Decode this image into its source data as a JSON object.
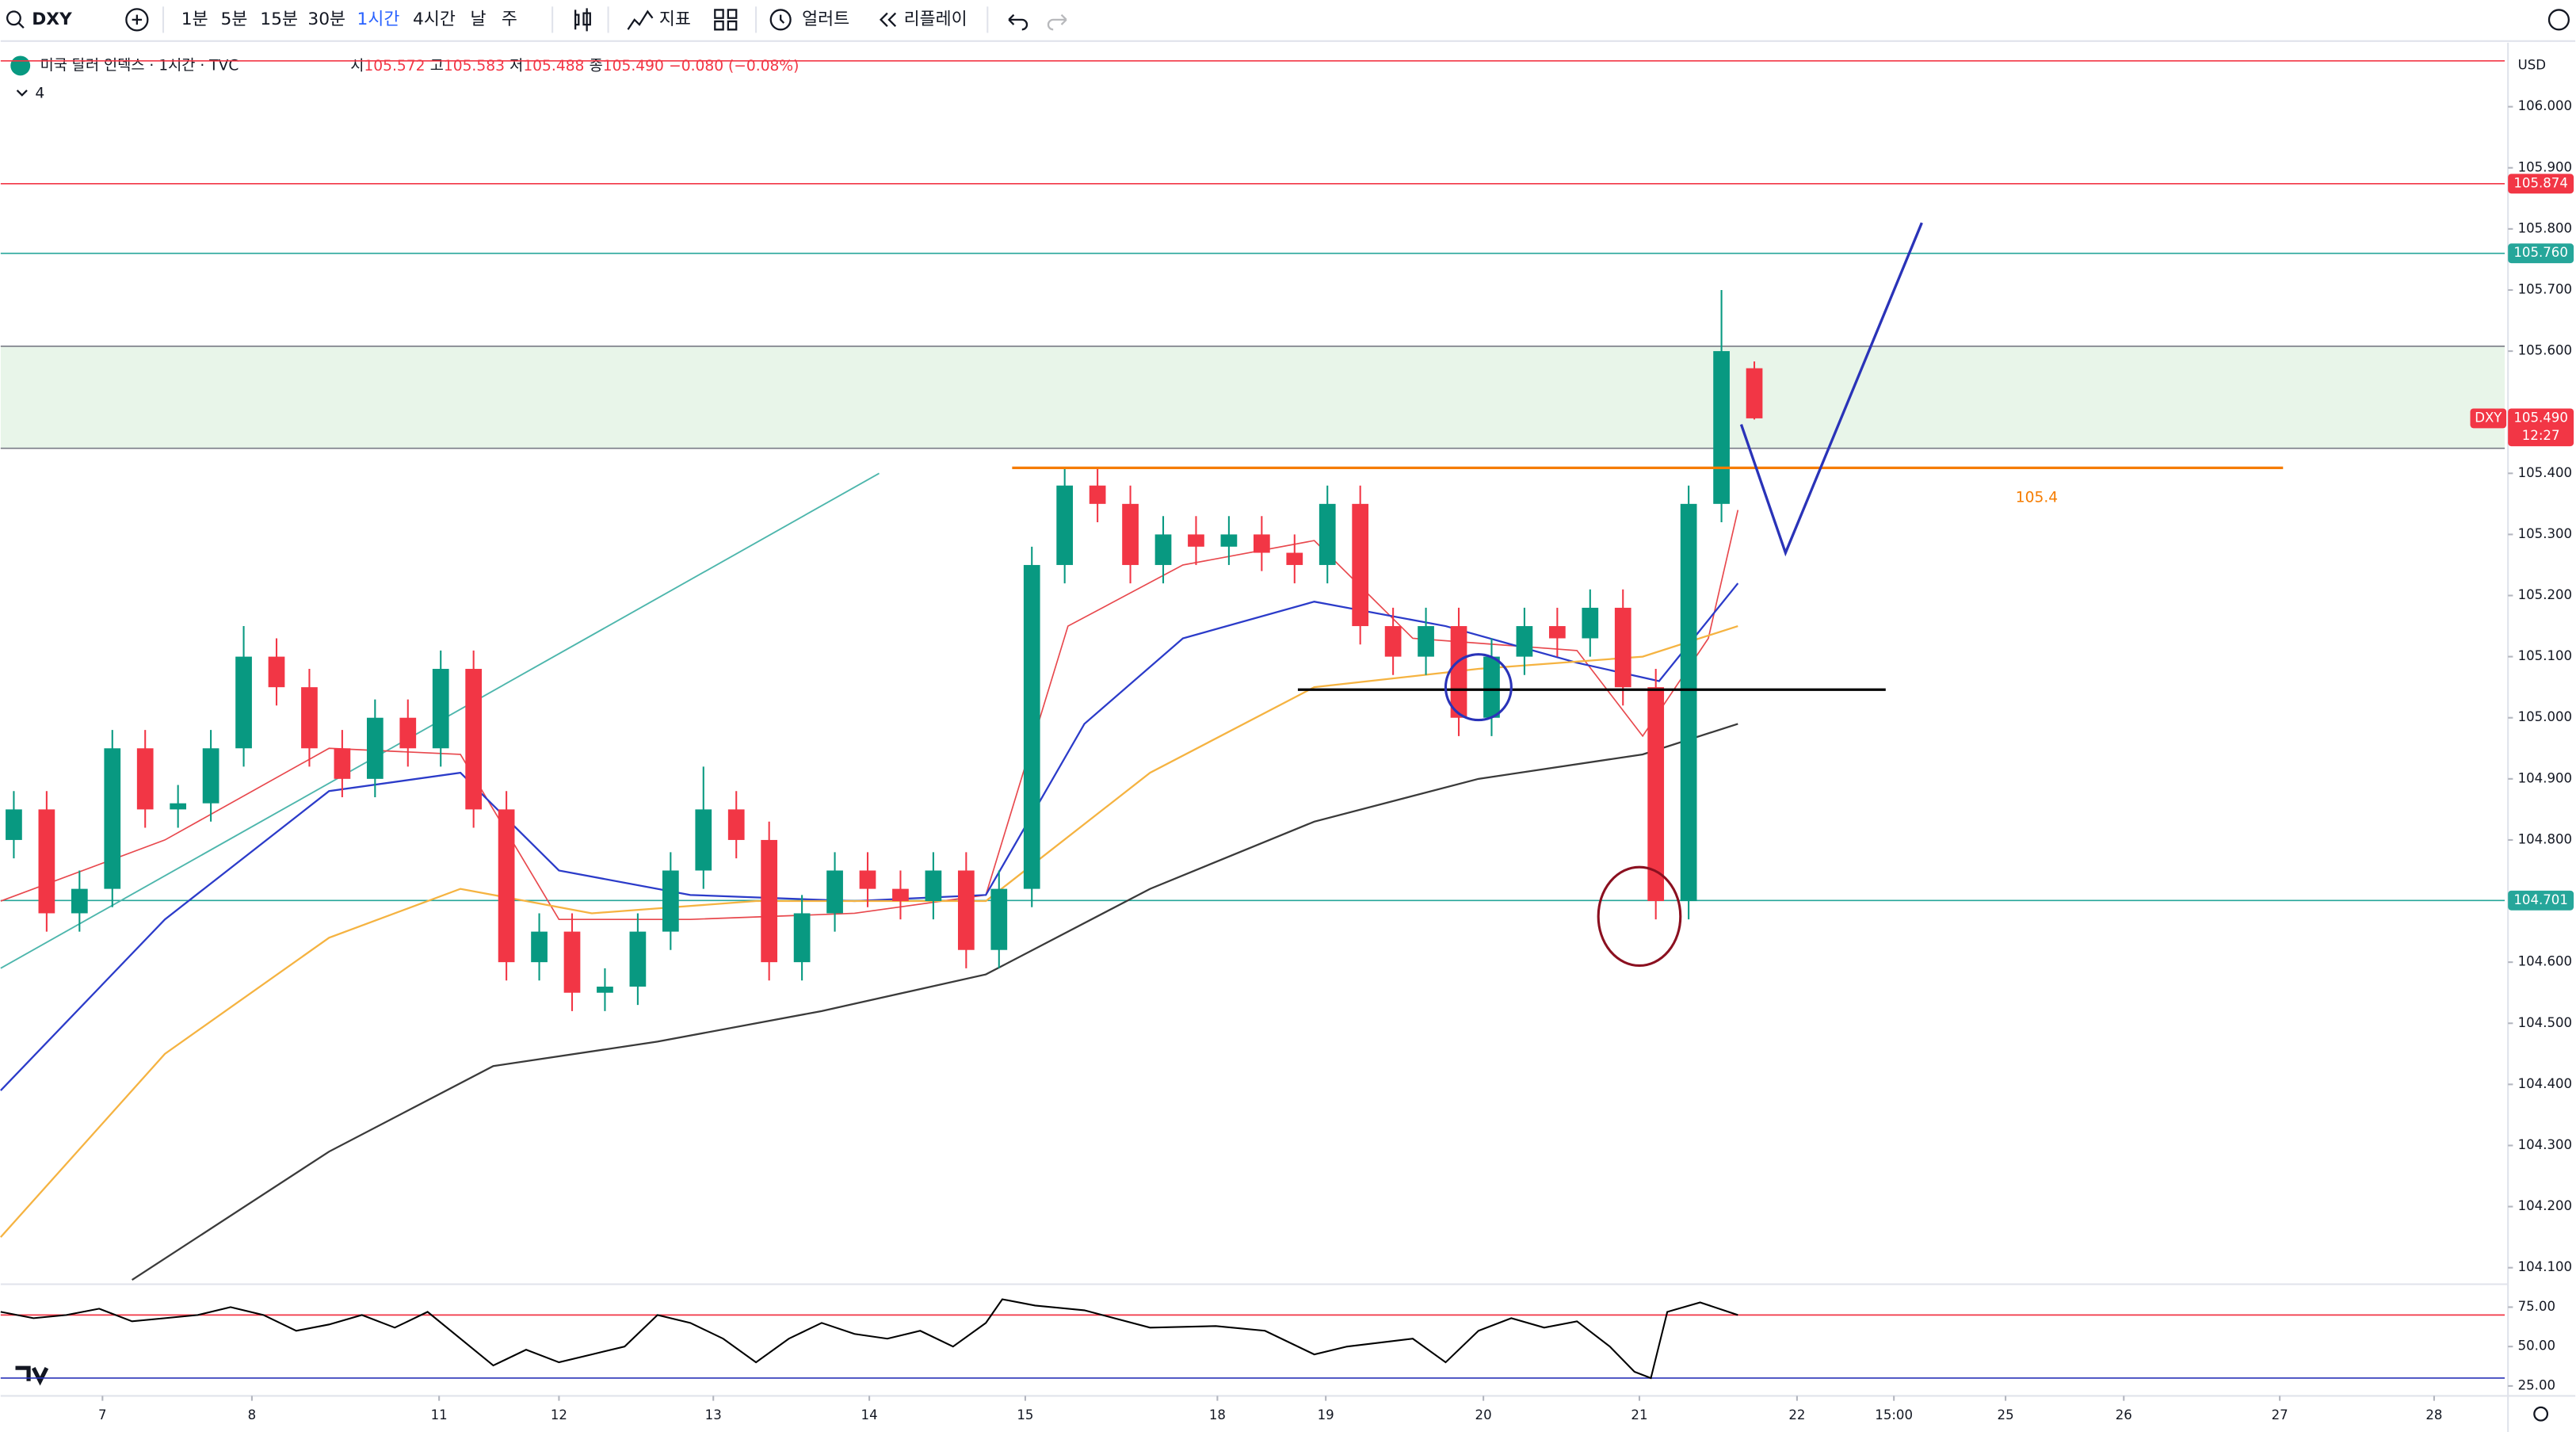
{
  "toolbar": {
    "symbol": "DXY",
    "intervals": [
      "1분",
      "5분",
      "15분",
      "30분",
      "1시간",
      "4시간",
      "날",
      "주"
    ],
    "indicators": "지표",
    "alerts": "얼러트",
    "replay": "리플레이"
  },
  "legend": {
    "title": "미국 달러 인덱스 · 1시간 · TVC",
    "open_label": "시",
    "open": "105.572",
    "high_label": "고",
    "high": "105.583",
    "low_label": "저",
    "low": "105.488",
    "close_label": "종",
    "close": "105.490",
    "change": "−0.080 (−0.08%)",
    "indicator_count": "4"
  },
  "chart_data": [
    {
      "type": "candlestick",
      "currency": "USD",
      "grid": false,
      "up_color": "#089981",
      "down_color": "#f23645",
      "xlim": [
        0,
        381.25
      ],
      "ylim": [
        104.073,
        106.094
      ],
      "xticks": [
        {
          "value": 15.5,
          "label": "7"
        },
        {
          "value": 38.25,
          "label": "8"
        },
        {
          "value": 66.75,
          "label": "11"
        },
        {
          "value": 85,
          "label": "12"
        },
        {
          "value": 108.5,
          "label": "13"
        },
        {
          "value": 132.25,
          "label": "14"
        },
        {
          "value": 156,
          "label": "15"
        },
        {
          "value": 185.25,
          "label": "18"
        },
        {
          "value": 201.75,
          "label": "19"
        },
        {
          "value": 225.75,
          "label": "20"
        },
        {
          "value": 249.5,
          "label": "21"
        },
        {
          "value": 273.5,
          "label": "22"
        },
        {
          "value": 288.25,
          "label": "15:00"
        },
        {
          "value": 305.25,
          "label": "25"
        },
        {
          "value": 323.25,
          "label": "26"
        },
        {
          "value": 347,
          "label": "27"
        },
        {
          "value": 370.5,
          "label": "28"
        }
      ],
      "yticks": [
        {
          "value": 106,
          "label": "106.000"
        },
        {
          "value": 105.9,
          "label": "105.900"
        },
        {
          "value": 105.8,
          "label": "105.800"
        },
        {
          "value": 105.7,
          "label": "105.700"
        },
        {
          "value": 105.6,
          "label": "105.600"
        },
        {
          "value": 105.4,
          "label": "105.400"
        },
        {
          "value": 105.3,
          "label": "105.300"
        },
        {
          "value": 105.2,
          "label": "105.200"
        },
        {
          "value": 105.1,
          "label": "105.100"
        },
        {
          "value": 105,
          "label": "105.000"
        },
        {
          "value": 104.9,
          "label": "104.900"
        },
        {
          "value": 104.8,
          "label": "104.800"
        },
        {
          "value": 104.6,
          "label": "104.600"
        },
        {
          "value": 104.5,
          "label": "104.500"
        },
        {
          "value": 104.4,
          "label": "104.400"
        },
        {
          "value": 104.3,
          "label": "104.300"
        },
        {
          "value": 104.2,
          "label": "104.200"
        },
        {
          "value": 104.1,
          "label": "104.100"
        }
      ],
      "x": [
        2,
        7,
        12,
        17,
        22,
        27,
        32,
        37,
        42,
        47,
        52,
        57,
        62,
        67,
        72,
        77,
        82,
        87,
        92,
        97,
        102,
        107,
        112,
        117,
        122,
        127,
        132,
        137,
        142,
        147,
        152,
        157,
        162,
        167,
        172,
        177,
        182,
        187,
        192,
        197,
        202,
        207,
        212,
        217,
        222,
        227,
        232,
        237,
        242,
        247,
        252,
        257,
        262,
        267
      ],
      "open": [
        104.8,
        104.85,
        104.68,
        104.72,
        104.95,
        104.85,
        104.86,
        104.95,
        105.1,
        105.05,
        104.95,
        104.9,
        105.0,
        104.95,
        105.08,
        104.85,
        104.6,
        104.65,
        104.55,
        104.56,
        104.65,
        104.75,
        104.85,
        104.8,
        104.6,
        104.68,
        104.75,
        104.72,
        104.7,
        104.75,
        104.62,
        104.72,
        105.25,
        105.38,
        105.35,
        105.25,
        105.3,
        105.28,
        105.3,
        105.27,
        105.25,
        105.35,
        105.15,
        105.1,
        105.15,
        105.0,
        105.1,
        105.15,
        105.13,
        105.18,
        105.05,
        104.7,
        105.35,
        105.572
      ],
      "high": [
        104.88,
        104.88,
        104.75,
        104.98,
        104.98,
        104.89,
        104.98,
        105.15,
        105.13,
        105.08,
        104.98,
        105.03,
        105.03,
        105.11,
        105.11,
        104.88,
        104.68,
        104.68,
        104.59,
        104.68,
        104.78,
        104.92,
        104.88,
        104.83,
        104.71,
        104.78,
        104.78,
        104.75,
        104.78,
        104.78,
        104.75,
        105.28,
        105.41,
        105.41,
        105.38,
        105.33,
        105.33,
        105.33,
        105.33,
        105.3,
        105.38,
        105.38,
        105.18,
        105.18,
        105.18,
        105.13,
        105.18,
        105.18,
        105.21,
        105.21,
        105.08,
        105.38,
        105.7,
        105.583
      ],
      "low": [
        104.77,
        104.65,
        104.65,
        104.69,
        104.82,
        104.82,
        104.83,
        104.92,
        105.02,
        104.92,
        104.87,
        104.87,
        104.92,
        104.92,
        104.82,
        104.57,
        104.57,
        104.52,
        104.52,
        104.53,
        104.62,
        104.72,
        104.77,
        104.57,
        104.57,
        104.65,
        104.69,
        104.67,
        104.67,
        104.59,
        104.59,
        104.69,
        105.22,
        105.32,
        105.22,
        105.22,
        105.25,
        105.25,
        105.24,
        105.22,
        105.22,
        105.12,
        105.07,
        105.07,
        104.97,
        104.97,
        105.07,
        105.1,
        105.1,
        105.02,
        104.67,
        104.67,
        105.32,
        105.488
      ],
      "close": [
        104.85,
        104.68,
        104.72,
        104.95,
        104.85,
        104.86,
        104.95,
        105.1,
        105.05,
        104.95,
        104.9,
        105.0,
        104.95,
        105.08,
        104.85,
        104.6,
        104.65,
        104.55,
        104.56,
        104.65,
        104.75,
        104.85,
        104.8,
        104.6,
        104.68,
        104.75,
        104.72,
        104.7,
        104.75,
        104.62,
        104.72,
        105.25,
        105.38,
        105.35,
        105.25,
        105.3,
        105.28,
        105.3,
        105.27,
        105.25,
        105.35,
        105.15,
        105.1,
        105.15,
        105.0,
        105.1,
        105.15,
        105.13,
        105.18,
        105.05,
        104.7,
        105.35,
        105.6,
        105.49
      ],
      "moving_averages": [
        {
          "color": "#e8484d",
          "x": [
            0,
            25,
            50,
            70,
            85,
            105,
            130,
            150,
            162.5,
            180,
            200,
            215,
            240,
            250,
            260,
            264.5
          ],
          "values": [
            104.7,
            104.8,
            104.95,
            104.94,
            104.67,
            104.67,
            104.68,
            104.71,
            105.15,
            105.25,
            105.29,
            105.13,
            105.11,
            104.97,
            105.13,
            105.34
          ]
        },
        {
          "color": "#2b3bc9",
          "x": [
            0,
            25,
            50,
            70,
            85,
            105,
            130,
            150,
            165,
            180,
            200,
            220,
            240,
            252.5,
            264.5
          ],
          "values": [
            104.39,
            104.67,
            104.88,
            104.91,
            104.75,
            104.71,
            104.7,
            104.71,
            104.99,
            105.13,
            105.19,
            105.15,
            105.09,
            105.06,
            105.22
          ]
        },
        {
          "color": "#f5b341",
          "x": [
            0,
            25,
            50,
            70,
            90,
            115,
            150,
            175,
            200,
            225,
            250,
            264.5
          ],
          "values": [
            104.15,
            104.45,
            104.64,
            104.72,
            104.68,
            104.7,
            104.7,
            104.91,
            105.05,
            105.08,
            105.1,
            105.15
          ]
        },
        {
          "color": "#3a3a3a",
          "x": [
            20,
            50,
            75,
            100,
            125,
            150,
            175,
            200,
            225,
            250,
            264.5
          ],
          "values": [
            104.08,
            104.29,
            104.43,
            104.47,
            104.52,
            104.58,
            104.72,
            104.83,
            104.9,
            104.94,
            104.99
          ]
        }
      ],
      "zone": {
        "values": [
          105.441,
          105.608
        ],
        "color": "#e8f5e9"
      },
      "levels": [
        {
          "value": 106.075,
          "color": "#f23645"
        },
        {
          "value": 105.874,
          "color": "#f23645"
        },
        {
          "value": 105.76,
          "color": "#26a69a"
        },
        {
          "value": 104.701,
          "color": "#26a69a"
        }
      ],
      "price_tags": [
        {
          "value": 105.874,
          "label": "105.874",
          "color": "#f23645"
        },
        {
          "value": 105.76,
          "label": "105.760",
          "color": "#26a69a"
        },
        {
          "value": 104.701,
          "label": "104.701",
          "color": "#26a69a"
        }
      ],
      "last_tag": {
        "symbol": "DXY",
        "value": 105.49,
        "label": "105.490",
        "countdown": "12:27",
        "color": "#f23645"
      },
      "trend_line": {
        "x": [
          0,
          133.75
        ],
        "y": [
          104.59,
          105.4
        ],
        "color": "#4db6ac"
      },
      "support_line": {
        "x": [
          154,
          347.5
        ],
        "y": [
          105.409,
          105.409
        ],
        "color": "#f57c00"
      },
      "base_line": {
        "x": [
          197.5,
          287
        ],
        "y": [
          105.046,
          105.046
        ],
        "color": "#000000"
      },
      "projection": {
        "x": [
          265,
          271.75,
          292.5
        ],
        "y": [
          105.48,
          105.27,
          105.81
        ],
        "color": "#2a33b8"
      },
      "circles": [
        {
          "x": 225,
          "y": 105.05,
          "color": "#2a33b8"
        },
        {
          "x": 249.5,
          "y": 104.675,
          "color": "#8b1020"
        }
      ],
      "annotation": {
        "text": "105.4",
        "x": 310,
        "y": 105.36,
        "color": "#f57c00"
      }
    },
    {
      "type": "line",
      "color": "#000000",
      "xlim": [
        0,
        381.25
      ],
      "ylim": [
        20.8,
        88.5
      ],
      "yticks": [
        {
          "value": 75,
          "label": "75.00"
        },
        {
          "value": 50,
          "label": "50.00"
        },
        {
          "value": 25,
          "label": "25.00"
        }
      ],
      "bands": [
        {
          "value": 70,
          "color": "#f23645"
        },
        {
          "value": 30,
          "color": "#2a33b8"
        }
      ],
      "x": [
        0,
        5,
        10,
        15,
        20,
        25,
        30,
        35,
        40,
        45,
        50,
        55,
        60,
        65,
        70,
        75,
        80,
        85,
        90,
        95,
        100,
        105,
        110,
        115,
        120,
        125,
        130,
        135,
        140,
        145,
        150,
        152.5,
        157.5,
        165,
        175,
        185,
        192.5,
        200,
        205,
        215,
        220,
        225,
        230,
        235,
        240,
        245,
        248.75,
        251.25,
        253.75,
        258.75,
        264.5
      ],
      "values": [
        72,
        68,
        70,
        74,
        66,
        68,
        70,
        75,
        70,
        60,
        64,
        70,
        62,
        72,
        55,
        38,
        48,
        40,
        45,
        50,
        70,
        65,
        55,
        40,
        55,
        65,
        58,
        55,
        60,
        50,
        65,
        80,
        76,
        73,
        62,
        63,
        60,
        45,
        50,
        55,
        40,
        60,
        68,
        62,
        66,
        50,
        34,
        30,
        72,
        78,
        70
      ]
    }
  ]
}
